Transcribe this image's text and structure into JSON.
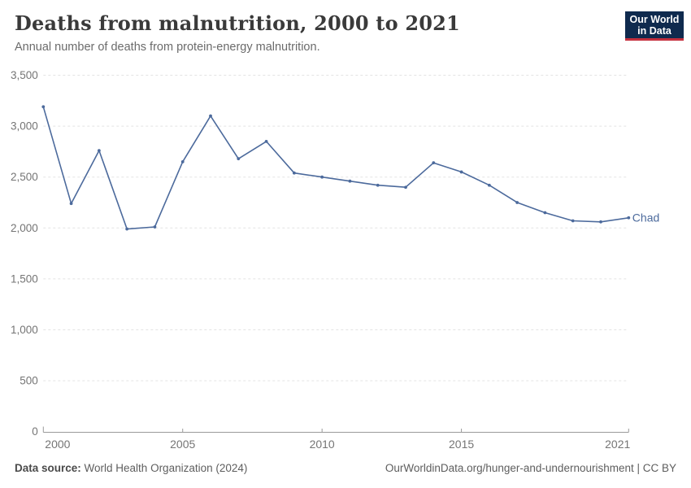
{
  "header": {
    "title": "Deaths from malnutrition, 2000 to 2021",
    "subtitle": "Annual number of deaths from protein-energy malnutrition.",
    "logo": {
      "line1": "Our World",
      "line2": "in Data",
      "bg_color": "#0f2a4e",
      "accent_color": "#c5303e"
    }
  },
  "chart_data": {
    "type": "line",
    "title": "Deaths from malnutrition, 2000 to 2021",
    "xlabel": "",
    "ylabel": "",
    "x": [
      2000,
      2001,
      2002,
      2003,
      2004,
      2005,
      2006,
      2007,
      2008,
      2009,
      2010,
      2011,
      2012,
      2013,
      2014,
      2015,
      2016,
      2017,
      2018,
      2019,
      2020,
      2021
    ],
    "series": [
      {
        "name": "Chad",
        "color": "#4c6a9c",
        "values": [
          3190,
          2240,
          2760,
          1990,
          2010,
          2650,
          3100,
          2680,
          2850,
          2540,
          2500,
          2460,
          2420,
          2400,
          2640,
          2550,
          2420,
          2250,
          2150,
          2070,
          2060,
          2100
        ]
      }
    ],
    "xlim": [
      2000,
      2021
    ],
    "ylim": [
      0,
      3500
    ],
    "yticks": {
      "values": [
        0,
        500,
        1000,
        1500,
        2000,
        2500,
        3000,
        3500
      ],
      "labels": [
        "0",
        "500",
        "1,000",
        "1,500",
        "2,000",
        "2,500",
        "3,000",
        "3,500"
      ]
    },
    "xticks": {
      "values": [
        2000,
        2005,
        2010,
        2015,
        2021
      ],
      "labels": [
        "2000",
        "2005",
        "2010",
        "2015",
        "2021"
      ]
    },
    "grid": "horizontal-dashed",
    "legend": "entity-label-right",
    "grid_color": "#e3e3e3",
    "axis_color": "#9a9a9a",
    "tick_label_color": "#757575"
  },
  "footer": {
    "source_label": "Data source:",
    "source_value": " World Health Organization (2024)",
    "link_text": "OurWorldinData.org/hunger-and-undernourishment | CC BY"
  }
}
